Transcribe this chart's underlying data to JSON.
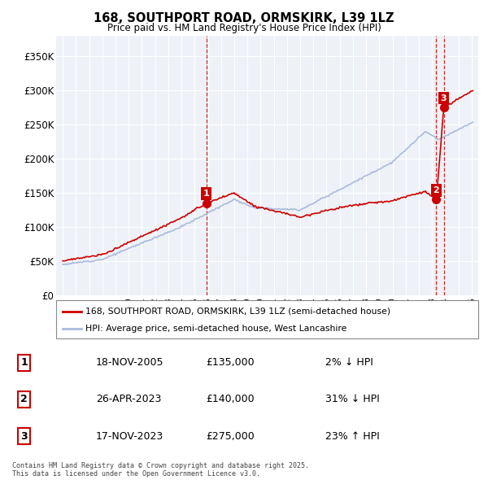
{
  "title": "168, SOUTHPORT ROAD, ORMSKIRK, L39 1LZ",
  "subtitle": "Price paid vs. HM Land Registry's House Price Index (HPI)",
  "property_label": "168, SOUTHPORT ROAD, ORMSKIRK, L39 1LZ (semi-detached house)",
  "hpi_label": "HPI: Average price, semi-detached house, West Lancashire",
  "transactions": [
    {
      "num": 1,
      "date": "18-NOV-2005",
      "price": 135000,
      "pct": "2%",
      "dir": "↓",
      "x_year": 2005.88
    },
    {
      "num": 2,
      "date": "26-APR-2023",
      "price": 140000,
      "pct": "31%",
      "dir": "↓",
      "x_year": 2023.32
    },
    {
      "num": 3,
      "date": "17-NOV-2023",
      "price": 275000,
      "pct": "23%",
      "dir": "↑",
      "x_year": 2023.88
    }
  ],
  "ylim": [
    0,
    380000
  ],
  "xlim": [
    1994.5,
    2026.5
  ],
  "yticks": [
    0,
    50000,
    100000,
    150000,
    200000,
    250000,
    300000,
    350000
  ],
  "ytick_labels": [
    "£0",
    "£50K",
    "£100K",
    "£150K",
    "£200K",
    "£250K",
    "£300K",
    "£350K"
  ],
  "property_color": "#cc0000",
  "hpi_color": "#aabbdd",
  "vline_color": "#cc0000",
  "background_color": "#ffffff",
  "plot_bg_color": "#eef2f8",
  "grid_color": "#ffffff",
  "footer": "Contains HM Land Registry data © Crown copyright and database right 2025.\nThis data is licensed under the Open Government Licence v3.0."
}
